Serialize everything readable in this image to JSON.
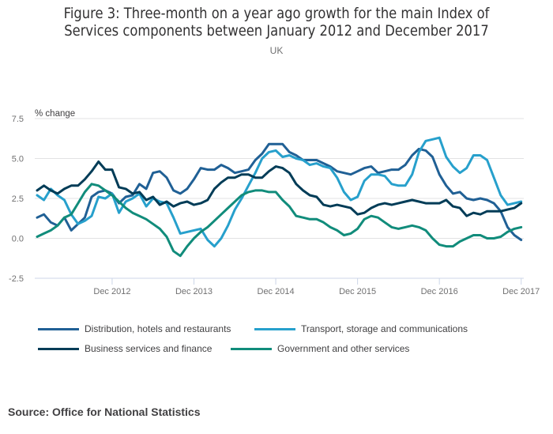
{
  "chart_data": {
    "type": "line",
    "title": "Figure 3: Three-month on a year ago growth for the main Index of Services components between January 2012 and December 2017",
    "subtitle": "UK",
    "ylabel": "% change",
    "xlabel": "",
    "ylim": [
      -2.5,
      7.5
    ],
    "yticks": [
      "7.5",
      "5.0",
      "2.5",
      "0.0",
      "-2.5"
    ],
    "ytick_values": [
      7.5,
      5.0,
      2.5,
      0.0,
      -2.5
    ],
    "xticks": [
      "Dec 2012",
      "Dec 2013",
      "Dec 2014",
      "Dec 2015",
      "Dec 2016",
      "Dec 2017"
    ],
    "xtick_month_index": [
      11,
      23,
      35,
      47,
      59,
      71
    ],
    "x_start": "Jan 2012",
    "x_end": "Dec 2017",
    "grid": true,
    "legend_position": "bottom",
    "series": [
      {
        "name": "Distribution, hotels and restaurants",
        "color": "#206095",
        "values": [
          1.3,
          1.5,
          1.0,
          0.8,
          1.3,
          0.5,
          0.9,
          1.3,
          2.6,
          2.9,
          3.0,
          2.8,
          2.2,
          2.6,
          2.7,
          3.4,
          3.1,
          4.1,
          4.2,
          3.8,
          3.0,
          2.8,
          3.1,
          3.7,
          4.4,
          4.3,
          4.3,
          4.6,
          4.4,
          4.1,
          4.2,
          4.3,
          4.9,
          5.3,
          5.9,
          5.9,
          5.9,
          5.4,
          5.2,
          4.9,
          4.9,
          4.9,
          4.7,
          4.5,
          4.2,
          4.1,
          4.0,
          4.2,
          4.4,
          4.5,
          4.1,
          4.2,
          4.3,
          4.3,
          4.6,
          5.2,
          5.6,
          5.5,
          5.1,
          4.0,
          3.3,
          2.8,
          2.9,
          2.5,
          2.4,
          2.5,
          2.4,
          2.2,
          1.7,
          0.7,
          0.2,
          -0.1
        ]
      },
      {
        "name": "Transport, storage and communications",
        "color": "#27a0cc",
        "values": [
          2.7,
          2.4,
          3.1,
          2.7,
          2.4,
          1.5,
          0.9,
          1.1,
          1.4,
          2.6,
          2.5,
          2.8,
          1.6,
          2.3,
          2.5,
          2.8,
          2.0,
          2.5,
          2.3,
          2.2,
          1.3,
          0.3,
          0.4,
          0.5,
          0.6,
          -0.1,
          -0.5,
          0.0,
          0.8,
          1.8,
          2.5,
          3.3,
          4.1,
          5.0,
          5.4,
          5.5,
          5.1,
          5.2,
          5.0,
          4.9,
          4.6,
          4.7,
          4.5,
          4.4,
          3.8,
          2.9,
          2.4,
          2.6,
          3.6,
          4.0,
          4.0,
          3.9,
          3.4,
          3.3,
          3.3,
          4.0,
          5.4,
          6.1,
          6.2,
          6.3,
          5.1,
          4.5,
          4.1,
          4.4,
          5.2,
          5.2,
          4.9,
          3.8,
          2.7,
          2.1,
          2.2,
          2.3
        ]
      },
      {
        "name": "Business services and finance",
        "color": "#003c57",
        "values": [
          3.0,
          3.3,
          3.0,
          2.8,
          3.1,
          3.3,
          3.3,
          3.7,
          4.2,
          4.8,
          4.3,
          4.3,
          3.2,
          3.1,
          2.8,
          2.9,
          2.4,
          2.6,
          2.1,
          2.3,
          2.0,
          2.2,
          2.3,
          2.1,
          2.2,
          2.4,
          3.1,
          3.5,
          3.8,
          3.8,
          4.0,
          4.0,
          3.8,
          3.8,
          4.2,
          4.5,
          4.4,
          4.1,
          3.4,
          3.0,
          2.7,
          2.6,
          2.1,
          2.0,
          2.1,
          2.0,
          1.9,
          1.5,
          1.6,
          1.9,
          2.1,
          2.2,
          2.1,
          2.2,
          2.3,
          2.4,
          2.3,
          2.2,
          2.2,
          2.2,
          2.4,
          2.0,
          1.9,
          1.4,
          1.6,
          1.5,
          1.7,
          1.7,
          1.7,
          1.8,
          1.9,
          2.2
        ]
      },
      {
        "name": "Government and other services",
        "color": "#118c7b",
        "values": [
          0.1,
          0.3,
          0.5,
          0.8,
          1.3,
          1.5,
          2.2,
          2.9,
          3.4,
          3.3,
          3.0,
          2.7,
          2.3,
          1.9,
          1.6,
          1.4,
          1.2,
          0.9,
          0.6,
          0.1,
          -0.8,
          -1.1,
          -0.5,
          0.0,
          0.4,
          0.7,
          1.1,
          1.5,
          1.9,
          2.3,
          2.7,
          2.9,
          3.0,
          3.0,
          2.9,
          2.9,
          2.4,
          2.0,
          1.4,
          1.3,
          1.2,
          1.2,
          1.0,
          0.7,
          0.5,
          0.2,
          0.3,
          0.6,
          1.2,
          1.4,
          1.3,
          1.0,
          0.7,
          0.6,
          0.7,
          0.8,
          0.7,
          0.5,
          0.0,
          -0.4,
          -0.5,
          -0.5,
          -0.2,
          0.0,
          0.2,
          0.2,
          0.0,
          0.0,
          0.1,
          0.4,
          0.6,
          0.7
        ]
      }
    ]
  },
  "source": "Source: Office for National Statistics"
}
